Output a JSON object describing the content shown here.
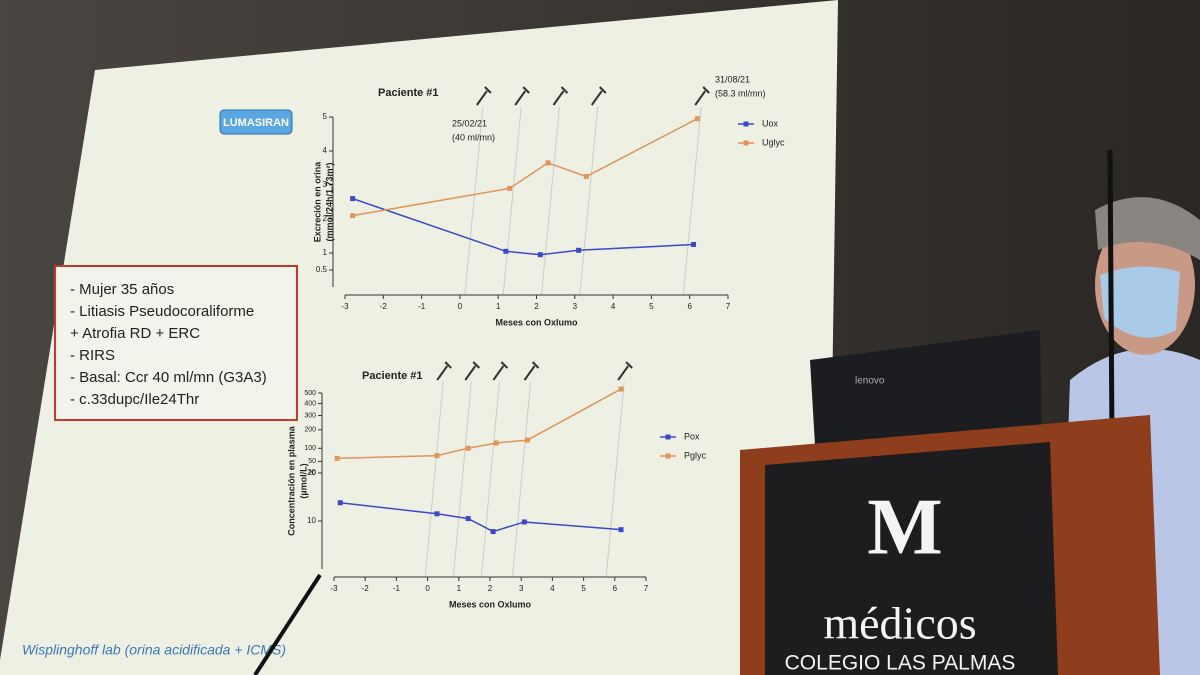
{
  "slide": {
    "badge": "LUMASIRAN",
    "patient_info": [
      "- Mujer 35 años",
      "- Litiasis Pseudocoraliforme",
      "+ Atrofia RD + ERC",
      "- RIRS",
      "- Basal: Ccr 40 ml/mn  (G3A3)",
      "- c.33dupc/Ile24Thr"
    ],
    "footer": "Wisplinghoff lab (orina acidificada + ICMS)"
  },
  "laptop": {
    "brand": "lenovo"
  },
  "podium": {
    "logo": "M",
    "name": "médicos",
    "subtitle": "COLEGIO LAS PALMAS"
  },
  "chart_data": [
    {
      "type": "line",
      "title": "Paciente #1",
      "xlabel": "Meses con Oxlumo",
      "ylabel": [
        "Excreción en orina",
        "(mmol/24h/1.73m²)"
      ],
      "annotations": [
        "25/02/21",
        "(40 ml/mn)",
        "31/08/21",
        "(58.3 ml/mn)"
      ],
      "xlim": [
        -3,
        7
      ],
      "xticks": [
        -3,
        -2,
        -1,
        0,
        1,
        2,
        3,
        4,
        5,
        6,
        7
      ],
      "ylim": [
        0,
        5
      ],
      "yticks": [
        0.5,
        1,
        2,
        3,
        4,
        5
      ],
      "legend": "right",
      "series": [
        {
          "name": "Uox",
          "color": "#3b48c8",
          "x": [
            -2.8,
            1.2,
            2.1,
            3.1,
            6.1
          ],
          "values": [
            2.6,
            1.05,
            0.95,
            1.08,
            1.25
          ]
        },
        {
          "name": "Uglyc",
          "color": "#e0955a",
          "x": [
            -2.8,
            1.3,
            2.3,
            3.3,
            6.2
          ],
          "values": [
            2.1,
            2.9,
            3.65,
            3.25,
            4.95
          ]
        }
      ]
    },
    {
      "type": "line",
      "title": "Paciente #1",
      "xlabel": "Meses con Oxlumo",
      "ylabel": [
        "Concentración en plasma",
        "(µmol/L)"
      ],
      "xlim": [
        -3,
        7
      ],
      "xticks": [
        -3,
        -2,
        -1,
        0,
        1,
        2,
        3,
        4,
        5,
        6,
        7
      ],
      "ylim": [
        0,
        20
      ],
      "yticks": [
        10,
        20
      ],
      "y2lim": [
        20,
        500
      ],
      "y2ticks": [
        20,
        50,
        100,
        200,
        300,
        400,
        500
      ],
      "y2scale": "sqrt",
      "legend": "right",
      "series": [
        {
          "name": "Pox",
          "color": "#3b48c8",
          "x": [
            -2.8,
            0.3,
            1.3,
            2.1,
            3.1,
            6.2
          ],
          "values": [
            13.8,
            11.5,
            10.5,
            7.8,
            9.8,
            8.2
          ]
        },
        {
          "name": "Pglyc",
          "color": "#e0955a",
          "axis": "y2",
          "x": [
            -2.9,
            0.3,
            1.3,
            2.2,
            3.2,
            6.2
          ],
          "values": [
            60,
            70,
            100,
            125,
            140,
            540
          ]
        }
      ]
    }
  ]
}
